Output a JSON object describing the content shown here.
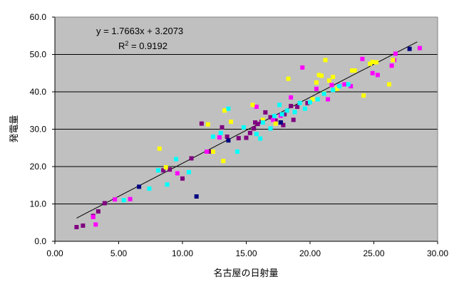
{
  "chart_data": {
    "type": "scatter",
    "title": "",
    "xlabel": "名古屋の日射量",
    "ylabel": "発電量",
    "xlim": [
      0,
      30
    ],
    "ylim": [
      0,
      60
    ],
    "x_ticks": [
      "0.00",
      "5.00",
      "10.00",
      "15.00",
      "20.00",
      "25.00",
      "30.00"
    ],
    "y_ticks": [
      "0.0",
      "10.0",
      "20.0",
      "30.0",
      "40.0",
      "50.0",
      "60.0"
    ],
    "grid": "horizontal",
    "plot_background": "#c0c0c0",
    "legend": "none",
    "trendline": {
      "equation": "y = 1.7663x + 3.2073",
      "r2_label": "R",
      "r2_exp": "2",
      "r2_value": " = 0.9192",
      "slope": 1.7663,
      "intercept": 3.2073,
      "x_range": [
        1.7,
        28.4
      ],
      "color": "#000000"
    },
    "series": [
      {
        "color": "#800080",
        "points": [
          [
            1.7,
            3.8
          ],
          [
            2.2,
            4.2
          ],
          [
            3.0,
            6.8
          ],
          [
            3.4,
            8.0
          ],
          [
            3.9,
            10.2
          ],
          [
            8.5,
            19.0
          ],
          [
            9.0,
            19.2
          ],
          [
            10.0,
            16.8
          ],
          [
            10.7,
            22.2
          ],
          [
            11.5,
            31.5
          ],
          [
            12.2,
            24.0
          ],
          [
            13.1,
            30.5
          ],
          [
            13.5,
            28.0
          ],
          [
            14.4,
            27.6
          ],
          [
            15.0,
            27.7
          ],
          [
            15.3,
            29.0
          ],
          [
            15.6,
            30.2
          ],
          [
            15.7,
            31.8
          ],
          [
            15.9,
            31.4
          ],
          [
            16.2,
            32.0
          ],
          [
            16.5,
            34.5
          ],
          [
            16.9,
            33.2
          ],
          [
            17.3,
            32.3
          ],
          [
            17.7,
            31.8
          ],
          [
            17.9,
            31.1
          ],
          [
            18.0,
            34.0
          ],
          [
            18.5,
            36.2
          ],
          [
            18.7,
            32.5
          ],
          [
            19.0,
            36.0
          ],
          [
            19.8,
            37.0
          ]
        ]
      },
      {
        "color": "#ff00ff",
        "points": [
          [
            3.0,
            6.5
          ],
          [
            3.2,
            4.5
          ],
          [
            4.7,
            11.2
          ],
          [
            5.9,
            11.3
          ],
          [
            9.6,
            18.2
          ],
          [
            11.9,
            24.0
          ],
          [
            12.9,
            27.8
          ],
          [
            15.8,
            36.0
          ],
          [
            17.1,
            32.5
          ],
          [
            17.7,
            33.6
          ],
          [
            18.5,
            38.5
          ],
          [
            19.4,
            46.5
          ],
          [
            20.5,
            40.8
          ],
          [
            21.4,
            38.0
          ],
          [
            21.7,
            41.8
          ],
          [
            22.3,
            41.6
          ],
          [
            22.7,
            42.0
          ],
          [
            23.2,
            41.5
          ],
          [
            24.1,
            48.8
          ],
          [
            24.9,
            45.0
          ],
          [
            25.3,
            44.5
          ],
          [
            26.4,
            47.0
          ],
          [
            26.6,
            48.5
          ],
          [
            26.7,
            50.2
          ],
          [
            28.6,
            51.7
          ]
        ]
      },
      {
        "color": "#ffff00",
        "points": [
          [
            8.2,
            24.8
          ],
          [
            8.7,
            19.8
          ],
          [
            12.0,
            31.3
          ],
          [
            12.4,
            24.0
          ],
          [
            13.2,
            21.5
          ],
          [
            13.3,
            35.0
          ],
          [
            13.8,
            32.0
          ],
          [
            15.5,
            36.5
          ],
          [
            16.3,
            32.5
          ],
          [
            17.3,
            31.5
          ],
          [
            18.3,
            43.5
          ],
          [
            20.2,
            38.0
          ],
          [
            20.5,
            42.5
          ],
          [
            20.7,
            44.5
          ],
          [
            20.9,
            44.3
          ],
          [
            21.1,
            39.6
          ],
          [
            21.2,
            48.5
          ],
          [
            21.5,
            43.0
          ],
          [
            21.8,
            44.0
          ],
          [
            22.1,
            40.8
          ],
          [
            23.3,
            45.7
          ],
          [
            23.5,
            45.7
          ],
          [
            24.2,
            39.0
          ],
          [
            24.7,
            47.5
          ],
          [
            24.9,
            48.0
          ],
          [
            25.2,
            47.9
          ],
          [
            26.2,
            42.0
          ],
          [
            26.5,
            48.5
          ]
        ]
      },
      {
        "color": "#00ffff",
        "points": [
          [
            5.4,
            11.0
          ],
          [
            7.4,
            14.1
          ],
          [
            8.1,
            19.0
          ],
          [
            8.8,
            15.2
          ],
          [
            9.5,
            22.0
          ],
          [
            10.5,
            18.5
          ],
          [
            12.4,
            28.0
          ],
          [
            13.0,
            29.0
          ],
          [
            13.6,
            35.5
          ],
          [
            14.3,
            24.0
          ],
          [
            14.8,
            30.5
          ],
          [
            15.8,
            28.7
          ],
          [
            16.1,
            27.5
          ],
          [
            16.3,
            31.8
          ],
          [
            16.9,
            30.2
          ],
          [
            17.2,
            33.5
          ],
          [
            17.8,
            34.0
          ],
          [
            17.6,
            36.5
          ],
          [
            18.2,
            35.0
          ],
          [
            18.8,
            34.6
          ],
          [
            19.2,
            37.0
          ],
          [
            19.6,
            35.5
          ],
          [
            20.0,
            37.2
          ],
          [
            20.6,
            38.0
          ],
          [
            21.1,
            39.5
          ],
          [
            21.8,
            40.5
          ],
          [
            22.3,
            41.5
          ],
          [
            23.0,
            42.0
          ]
        ]
      },
      {
        "color": "#000080",
        "points": [
          [
            6.6,
            14.6
          ],
          [
            11.1,
            12.0
          ],
          [
            13.6,
            27.0
          ],
          [
            17.7,
            31.8
          ],
          [
            27.8,
            51.5
          ]
        ]
      }
    ]
  }
}
